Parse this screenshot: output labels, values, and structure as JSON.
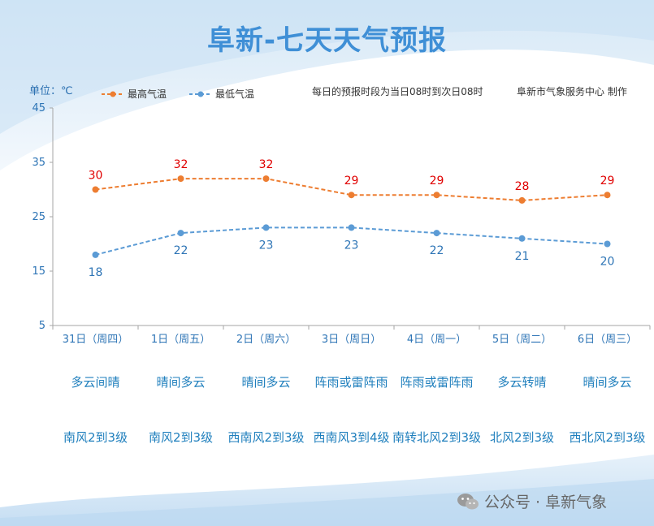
{
  "header": {
    "title": "阜新-七天天气预报",
    "unit": "单位：℃",
    "legend_high": "最高气温",
    "legend_low": "最低气温",
    "note_forecast": "每日的预报时段为当日08时到次日08时",
    "note_producer": "阜新市气象服务中心 制作"
  },
  "watermark": {
    "text": "公众号 · 阜新气象"
  },
  "colors": {
    "high": "#ed7d31",
    "low": "#5b9bd5",
    "high_label": "#e00000",
    "low_label": "#2e75b6",
    "axis": "#a6a6a6",
    "tick_text": "#2e75b6"
  },
  "chart_data": {
    "type": "line",
    "categories": [
      "31日（周四）",
      "1日（周五）",
      "2日（周六）",
      "3日（周日）",
      "4日（周一）",
      "5日（周二）",
      "6日（周三）"
    ],
    "series": [
      {
        "name": "最高气温",
        "values": [
          30,
          32,
          32,
          29,
          29,
          28,
          29
        ]
      },
      {
        "name": "最低气温",
        "values": [
          18,
          22,
          23,
          23,
          22,
          21,
          20
        ]
      }
    ],
    "ylim": [
      5,
      45
    ],
    "yticks": [
      5,
      15,
      25,
      35,
      45
    ],
    "grid": false,
    "legend": "top-left"
  },
  "weather": [
    "多云间晴",
    "晴间多云",
    "晴间多云",
    "阵雨或雷阵雨",
    "阵雨或雷阵雨",
    "多云转晴",
    "晴间多云"
  ],
  "wind": [
    "南风2到3级",
    "南风2到3级",
    "西南风2到3级",
    "西南风3到4级",
    "南转北风2到3级",
    "北风2到3级",
    "西北风2到3级"
  ]
}
